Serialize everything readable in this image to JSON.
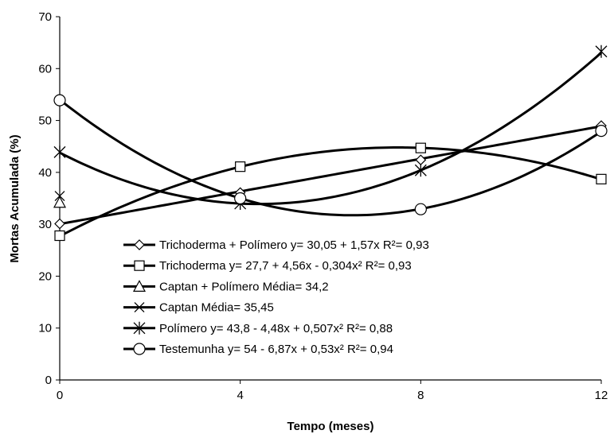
{
  "chart_data": {
    "type": "line",
    "title": "",
    "xlabel": "Tempo (meses)",
    "ylabel": "Mortas Acumulada (%)",
    "x_ticks": [
      "0",
      "4",
      "8",
      "12"
    ],
    "y_ticks": [
      "0",
      "10",
      "20",
      "30",
      "40",
      "50",
      "60",
      "70"
    ],
    "xlim": [
      0,
      12
    ],
    "ylim": [
      0,
      70
    ],
    "grid": false,
    "legend_position": "center-left",
    "x": [
      0,
      4,
      8,
      12
    ],
    "series": [
      {
        "name": "Trichoderma + Polímero  y= 30,05 + 1,57x  R²= 0,93",
        "marker": "diamond",
        "points": [
          30.1,
          36.1,
          42.4,
          49.0
        ],
        "fit": [
          30.05,
          1.57,
          0
        ]
      },
      {
        "name": "Trichoderma  y= 27,7 + 4,56x - 0,304x²  R²= 0,93",
        "marker": "square",
        "points": [
          27.8,
          41.1,
          44.7,
          38.7
        ],
        "fit": [
          27.7,
          4.56,
          -0.304
        ]
      },
      {
        "name": "Captan + Polímero  Média= 34,2",
        "marker": "triangle",
        "points": [
          34.2
        ],
        "fit": null
      },
      {
        "name": "Captan  Média= 35,45",
        "marker": "x",
        "points": [
          35.45
        ],
        "fit": null
      },
      {
        "name": "Polímero  y= 43,8 - 4,48x + 0,507x²  R²= 0,88",
        "marker": "asterisk",
        "points": [
          43.9,
          34.0,
          40.4,
          63.3
        ],
        "fit": [
          43.8,
          -4.48,
          0.507
        ]
      },
      {
        "name": "Testemunha  y= 54 - 6,87x + 0,53x²  R²= 0,94",
        "marker": "circle",
        "points": [
          53.9,
          35.0,
          32.9,
          48.0
        ],
        "fit": [
          54,
          -6.87,
          0.53
        ]
      }
    ]
  }
}
